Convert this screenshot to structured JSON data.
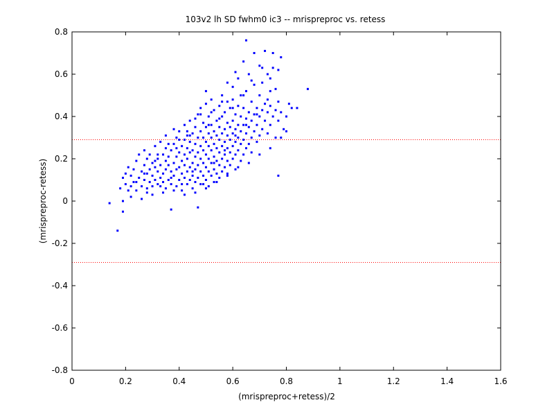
{
  "chart_data": {
    "type": "scatter",
    "title": "103v2 lh SD fwhm0 ic3 -- mrispreproc vs. retess",
    "xlabel": "(mrispreproc+retess)/2",
    "ylabel": "(mrispreproc-retess)",
    "xlim": [
      0,
      1.6
    ],
    "ylim": [
      -0.8,
      0.8
    ],
    "x_ticks": [
      "0",
      "0.2",
      "0.4",
      "0.6",
      "0.8",
      "1",
      "1.2",
      "1.4",
      "1.6"
    ],
    "y_ticks": [
      "-0.8",
      "-0.6",
      "-0.4",
      "-0.2",
      "0",
      "0.2",
      "0.4",
      "0.6",
      "0.8"
    ],
    "grid": false,
    "reference_lines": [
      {
        "y": 0.29,
        "style": "dotted",
        "color": "#ff0000"
      },
      {
        "y": -0.29,
        "style": "dotted",
        "color": "#ff0000"
      }
    ],
    "marker_color": "#0000ff",
    "points": [
      [
        0.14,
        -0.01
      ],
      [
        0.17,
        -0.14
      ],
      [
        0.19,
        -0.05
      ],
      [
        0.19,
        0.0
      ],
      [
        0.18,
        0.06
      ],
      [
        0.19,
        0.11
      ],
      [
        0.2,
        0.08
      ],
      [
        0.2,
        0.13
      ],
      [
        0.21,
        0.05
      ],
      [
        0.21,
        0.16
      ],
      [
        0.22,
        0.12
      ],
      [
        0.22,
        0.02
      ],
      [
        0.23,
        0.15
      ],
      [
        0.23,
        0.09
      ],
      [
        0.24,
        0.19
      ],
      [
        0.24,
        0.05
      ],
      [
        0.25,
        0.11
      ],
      [
        0.25,
        0.22
      ],
      [
        0.26,
        0.07
      ],
      [
        0.26,
        0.01
      ],
      [
        0.26,
        0.14
      ],
      [
        0.27,
        0.17
      ],
      [
        0.27,
        0.1
      ],
      [
        0.27,
        0.24
      ],
      [
        0.28,
        0.06
      ],
      [
        0.28,
        0.13
      ],
      [
        0.28,
        0.2
      ],
      [
        0.29,
        0.09
      ],
      [
        0.29,
        0.15
      ],
      [
        0.29,
        0.22
      ],
      [
        0.3,
        0.07
      ],
      [
        0.3,
        0.12
      ],
      [
        0.3,
        0.18
      ],
      [
        0.31,
        0.1
      ],
      [
        0.31,
        0.16
      ],
      [
        0.31,
        0.26
      ],
      [
        0.32,
        0.08
      ],
      [
        0.32,
        0.14
      ],
      [
        0.32,
        0.2
      ],
      [
        0.33,
        0.11
      ],
      [
        0.33,
        0.17
      ],
      [
        0.33,
        0.28
      ],
      [
        0.34,
        0.09
      ],
      [
        0.34,
        0.13
      ],
      [
        0.34,
        0.22
      ],
      [
        0.35,
        0.06
      ],
      [
        0.35,
        0.15
      ],
      [
        0.35,
        0.19
      ],
      [
        0.35,
        0.25
      ],
      [
        0.36,
        0.1
      ],
      [
        0.36,
        0.17
      ],
      [
        0.36,
        0.21
      ],
      [
        0.37,
        -0.04
      ],
      [
        0.37,
        0.08
      ],
      [
        0.37,
        0.14
      ],
      [
        0.37,
        0.24
      ],
      [
        0.38,
        0.12
      ],
      [
        0.38,
        0.18
      ],
      [
        0.38,
        0.27
      ],
      [
        0.38,
        0.34
      ],
      [
        0.39,
        0.07
      ],
      [
        0.39,
        0.15
      ],
      [
        0.39,
        0.21
      ],
      [
        0.39,
        0.3
      ],
      [
        0.4,
        0.1
      ],
      [
        0.4,
        0.16
      ],
      [
        0.4,
        0.23
      ],
      [
        0.4,
        0.33
      ],
      [
        0.41,
        0.13
      ],
      [
        0.41,
        0.19
      ],
      [
        0.41,
        0.26
      ],
      [
        0.41,
        0.05
      ],
      [
        0.42,
        0.11
      ],
      [
        0.42,
        0.17
      ],
      [
        0.42,
        0.22
      ],
      [
        0.42,
        0.29
      ],
      [
        0.42,
        0.36
      ],
      [
        0.43,
        0.08
      ],
      [
        0.43,
        0.14
      ],
      [
        0.43,
        0.2
      ],
      [
        0.43,
        0.25
      ],
      [
        0.43,
        0.31
      ],
      [
        0.44,
        0.1
      ],
      [
        0.44,
        0.16
      ],
      [
        0.44,
        0.23
      ],
      [
        0.44,
        0.28
      ],
      [
        0.44,
        0.38
      ],
      [
        0.45,
        0.06
      ],
      [
        0.45,
        0.12
      ],
      [
        0.45,
        0.18
      ],
      [
        0.45,
        0.24
      ],
      [
        0.45,
        0.32
      ],
      [
        0.46,
        0.09
      ],
      [
        0.46,
        0.15
      ],
      [
        0.46,
        0.21
      ],
      [
        0.46,
        0.27
      ],
      [
        0.46,
        0.35
      ],
      [
        0.47,
        0.11
      ],
      [
        0.47,
        0.17
      ],
      [
        0.47,
        0.23
      ],
      [
        0.47,
        0.3
      ],
      [
        0.47,
        -0.03
      ],
      [
        0.48,
        0.08
      ],
      [
        0.48,
        0.14
      ],
      [
        0.48,
        0.2
      ],
      [
        0.48,
        0.26
      ],
      [
        0.48,
        0.33
      ],
      [
        0.48,
        0.41
      ],
      [
        0.49,
        0.12
      ],
      [
        0.49,
        0.18
      ],
      [
        0.49,
        0.24
      ],
      [
        0.49,
        0.3
      ],
      [
        0.49,
        0.37
      ],
      [
        0.5,
        0.1
      ],
      [
        0.5,
        0.16
      ],
      [
        0.5,
        0.22
      ],
      [
        0.5,
        0.28
      ],
      [
        0.5,
        0.35
      ],
      [
        0.5,
        0.46
      ],
      [
        0.5,
        0.52
      ],
      [
        0.51,
        0.07
      ],
      [
        0.51,
        0.14
      ],
      [
        0.51,
        0.2
      ],
      [
        0.51,
        0.26
      ],
      [
        0.51,
        0.32
      ],
      [
        0.51,
        0.4
      ],
      [
        0.52,
        0.12
      ],
      [
        0.52,
        0.18
      ],
      [
        0.52,
        0.24
      ],
      [
        0.52,
        0.3
      ],
      [
        0.52,
        0.36
      ],
      [
        0.52,
        0.48
      ],
      [
        0.53,
        0.09
      ],
      [
        0.53,
        0.15
      ],
      [
        0.53,
        0.21
      ],
      [
        0.53,
        0.27
      ],
      [
        0.53,
        0.33
      ],
      [
        0.53,
        0.43
      ],
      [
        0.54,
        0.13
      ],
      [
        0.54,
        0.19
      ],
      [
        0.54,
        0.25
      ],
      [
        0.54,
        0.31
      ],
      [
        0.54,
        0.38
      ],
      [
        0.55,
        0.11
      ],
      [
        0.55,
        0.17
      ],
      [
        0.55,
        0.23
      ],
      [
        0.55,
        0.29
      ],
      [
        0.55,
        0.35
      ],
      [
        0.55,
        0.45
      ],
      [
        0.56,
        0.14
      ],
      [
        0.56,
        0.2
      ],
      [
        0.56,
        0.26
      ],
      [
        0.56,
        0.32
      ],
      [
        0.56,
        0.4
      ],
      [
        0.56,
        0.5
      ],
      [
        0.57,
        0.16
      ],
      [
        0.57,
        0.22
      ],
      [
        0.57,
        0.28
      ],
      [
        0.57,
        0.34
      ],
      [
        0.57,
        0.42
      ],
      [
        0.58,
        0.12
      ],
      [
        0.58,
        0.19
      ],
      [
        0.58,
        0.25
      ],
      [
        0.58,
        0.31
      ],
      [
        0.58,
        0.37
      ],
      [
        0.58,
        0.47
      ],
      [
        0.58,
        0.56
      ],
      [
        0.59,
        0.17
      ],
      [
        0.59,
        0.23
      ],
      [
        0.59,
        0.29
      ],
      [
        0.59,
        0.35
      ],
      [
        0.59,
        0.44
      ],
      [
        0.6,
        0.2
      ],
      [
        0.6,
        0.26
      ],
      [
        0.6,
        0.32
      ],
      [
        0.6,
        0.38
      ],
      [
        0.6,
        0.48
      ],
      [
        0.6,
        0.54
      ],
      [
        0.61,
        0.15
      ],
      [
        0.61,
        0.22
      ],
      [
        0.61,
        0.28
      ],
      [
        0.61,
        0.34
      ],
      [
        0.61,
        0.41
      ],
      [
        0.62,
        0.24
      ],
      [
        0.62,
        0.3
      ],
      [
        0.62,
        0.36
      ],
      [
        0.62,
        0.45
      ],
      [
        0.62,
        0.58
      ],
      [
        0.63,
        0.19
      ],
      [
        0.63,
        0.27
      ],
      [
        0.63,
        0.33
      ],
      [
        0.63,
        0.4
      ],
      [
        0.63,
        0.5
      ],
      [
        0.64,
        0.66
      ],
      [
        0.64,
        0.22
      ],
      [
        0.64,
        0.29
      ],
      [
        0.64,
        0.36
      ],
      [
        0.64,
        0.44
      ],
      [
        0.65,
        0.25
      ],
      [
        0.65,
        0.32
      ],
      [
        0.65,
        0.39
      ],
      [
        0.65,
        0.52
      ],
      [
        0.65,
        0.76
      ],
      [
        0.66,
        0.27
      ],
      [
        0.66,
        0.35
      ],
      [
        0.66,
        0.42
      ],
      [
        0.66,
        0.6
      ],
      [
        0.67,
        0.23
      ],
      [
        0.67,
        0.3
      ],
      [
        0.67,
        0.38
      ],
      [
        0.67,
        0.47
      ],
      [
        0.68,
        0.33
      ],
      [
        0.68,
        0.41
      ],
      [
        0.68,
        0.55
      ],
      [
        0.68,
        0.7
      ],
      [
        0.69,
        0.28
      ],
      [
        0.69,
        0.36
      ],
      [
        0.69,
        0.44
      ],
      [
        0.7,
        0.31
      ],
      [
        0.7,
        0.4
      ],
      [
        0.7,
        0.5
      ],
      [
        0.7,
        0.64
      ],
      [
        0.71,
        0.34
      ],
      [
        0.71,
        0.43
      ],
      [
        0.71,
        0.56
      ],
      [
        0.72,
        0.38
      ],
      [
        0.72,
        0.46
      ],
      [
        0.72,
        0.71
      ],
      [
        0.73,
        0.32
      ],
      [
        0.73,
        0.42
      ],
      [
        0.73,
        0.6
      ],
      [
        0.74,
        0.36
      ],
      [
        0.74,
        0.45
      ],
      [
        0.74,
        0.52
      ],
      [
        0.75,
        0.4
      ],
      [
        0.75,
        0.63
      ],
      [
        0.75,
        0.7
      ],
      [
        0.76,
        0.3
      ],
      [
        0.76,
        0.43
      ],
      [
        0.76,
        0.53
      ],
      [
        0.77,
        0.12
      ],
      [
        0.77,
        0.38
      ],
      [
        0.77,
        0.47
      ],
      [
        0.78,
        0.42
      ],
      [
        0.78,
        0.68
      ],
      [
        0.79,
        0.34
      ],
      [
        0.8,
        0.4
      ],
      [
        0.81,
        0.46
      ],
      [
        0.82,
        0.44
      ],
      [
        0.84,
        0.44
      ],
      [
        0.88,
        0.53
      ],
      [
        0.8,
        0.33
      ],
      [
        0.78,
        0.3
      ],
      [
        0.74,
        0.25
      ],
      [
        0.7,
        0.22
      ],
      [
        0.66,
        0.18
      ],
      [
        0.62,
        0.16
      ],
      [
        0.58,
        0.13
      ],
      [
        0.54,
        0.09
      ],
      [
        0.5,
        0.06
      ],
      [
        0.46,
        0.04
      ],
      [
        0.42,
        0.03
      ],
      [
        0.38,
        0.05
      ],
      [
        0.34,
        0.04
      ],
      [
        0.3,
        0.03
      ],
      [
        0.28,
        0.04
      ],
      [
        0.32,
        0.22
      ],
      [
        0.36,
        0.27
      ],
      [
        0.4,
        0.29
      ],
      [
        0.44,
        0.31
      ],
      [
        0.46,
        0.39
      ],
      [
        0.48,
        0.44
      ],
      [
        0.52,
        0.42
      ],
      [
        0.56,
        0.47
      ],
      [
        0.6,
        0.44
      ],
      [
        0.64,
        0.5
      ],
      [
        0.67,
        0.57
      ],
      [
        0.71,
        0.63
      ],
      [
        0.74,
        0.58
      ],
      [
        0.77,
        0.62
      ],
      [
        0.61,
        0.61
      ],
      [
        0.55,
        0.39
      ],
      [
        0.51,
        0.36
      ],
      [
        0.47,
        0.41
      ],
      [
        0.43,
        0.33
      ],
      [
        0.39,
        0.25
      ],
      [
        0.35,
        0.31
      ],
      [
        0.31,
        0.19
      ],
      [
        0.27,
        0.13
      ],
      [
        0.24,
        0.09
      ],
      [
        0.22,
        0.07
      ],
      [
        0.33,
        0.07
      ],
      [
        0.37,
        0.11
      ],
      [
        0.41,
        0.08
      ],
      [
        0.45,
        0.14
      ],
      [
        0.49,
        0.08
      ],
      [
        0.53,
        0.18
      ],
      [
        0.57,
        0.24
      ],
      [
        0.61,
        0.31
      ],
      [
        0.65,
        0.36
      ],
      [
        0.69,
        0.41
      ],
      [
        0.73,
        0.48
      ]
    ]
  }
}
